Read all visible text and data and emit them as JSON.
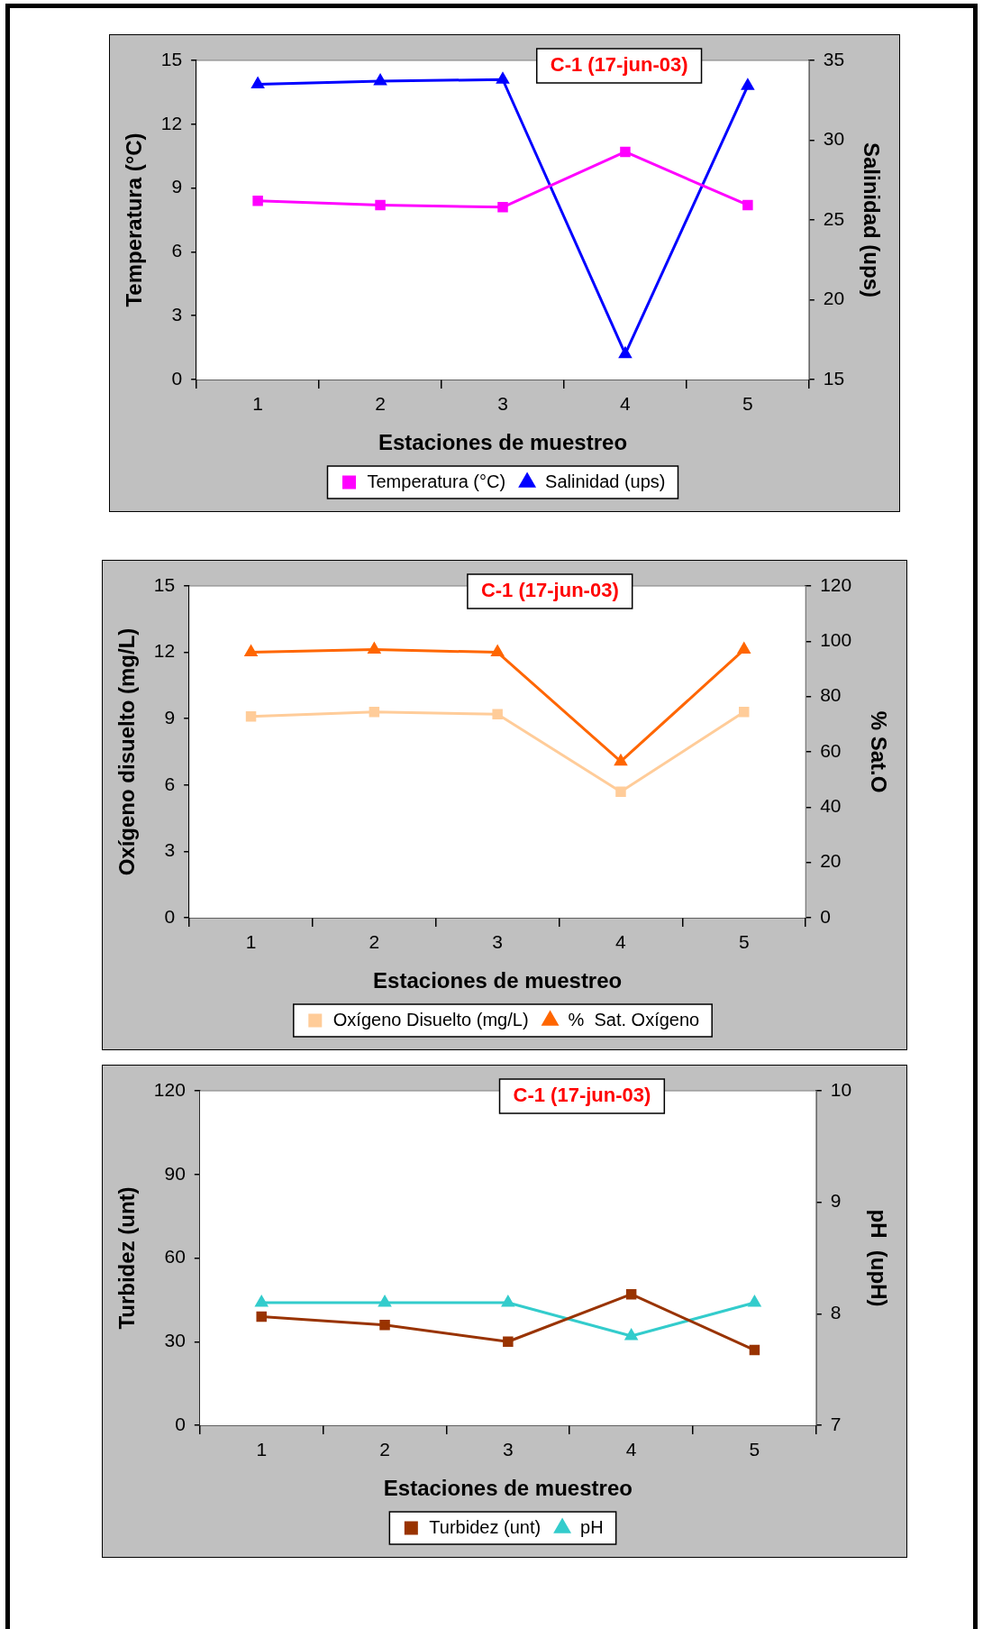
{
  "chart_data": [
    {
      "type": "line",
      "title": "C-1 (17-jun-03)",
      "xlabel": "Estaciones de muestreo",
      "ylabel": "Temperatura (°C)",
      "y2label": "Salinidad (ups)",
      "categories": [
        "1",
        "2",
        "3",
        "4",
        "5"
      ],
      "series": [
        {
          "name": "Temperatura (°C)",
          "color": "#ff00ff",
          "marker": "square",
          "values": [
            8.4,
            8.2,
            8.1,
            10.7,
            8.2
          ]
        },
        {
          "name": "Salinidad (ups)",
          "color": "#0000ff",
          "marker": "triangle",
          "axis": "y2",
          "values": [
            33.5,
            33.7,
            33.8,
            16.6,
            33.4
          ]
        }
      ],
      "ylim": [
        0,
        15
      ],
      "yticks": [
        0,
        3,
        6,
        9,
        12,
        15
      ],
      "y2lim": [
        15,
        35
      ],
      "y2ticks": [
        15,
        20,
        25,
        30,
        35
      ],
      "legend": "bottom",
      "grid": false
    },
    {
      "type": "line",
      "title": "C-1 (17-jun-03)",
      "xlabel": "Estaciones de muestreo",
      "ylabel": "Oxígeno disuelto (mg/L)",
      "y2label": "% Sat.O",
      "categories": [
        "1",
        "2",
        "3",
        "4",
        "5"
      ],
      "series": [
        {
          "name": "Oxígeno Disuelto (mg/L)",
          "color": "#ffcc99",
          "marker": "square",
          "values": [
            9.1,
            9.3,
            9.2,
            5.7,
            9.3
          ]
        },
        {
          "name": "%  Sat. Oxígeno",
          "color": "#ff6600",
          "marker": "triangle",
          "axis": "y2",
          "values": [
            96,
            97,
            96,
            56.5,
            97
          ]
        }
      ],
      "ylim": [
        0,
        15
      ],
      "yticks": [
        0,
        3,
        6,
        9,
        12,
        15
      ],
      "y2lim": [
        0,
        120
      ],
      "y2ticks": [
        0,
        20,
        40,
        60,
        80,
        100,
        120
      ],
      "legend": "bottom",
      "grid": false
    },
    {
      "type": "line",
      "title": "C-1 (17-jun-03)",
      "xlabel": "Estaciones de muestreo",
      "ylabel": "Turbidez (unt)",
      "y2label": "pH  (upH)",
      "categories": [
        "1",
        "2",
        "3",
        "4",
        "5"
      ],
      "series": [
        {
          "name": "Turbidez (unt)",
          "color": "#993300",
          "marker": "square",
          "values": [
            39,
            36,
            30,
            47,
            27
          ]
        },
        {
          "name": "pH",
          "color": "#33cccc",
          "marker": "triangle",
          "axis": "y2",
          "values": [
            8.1,
            8.1,
            8.1,
            7.8,
            8.1
          ]
        }
      ],
      "ylim": [
        0,
        120
      ],
      "yticks": [
        0,
        30,
        60,
        90,
        120
      ],
      "y2lim": [
        7,
        10
      ],
      "y2ticks": [
        7,
        8,
        9,
        10
      ],
      "legend": "bottom",
      "grid": false
    }
  ]
}
